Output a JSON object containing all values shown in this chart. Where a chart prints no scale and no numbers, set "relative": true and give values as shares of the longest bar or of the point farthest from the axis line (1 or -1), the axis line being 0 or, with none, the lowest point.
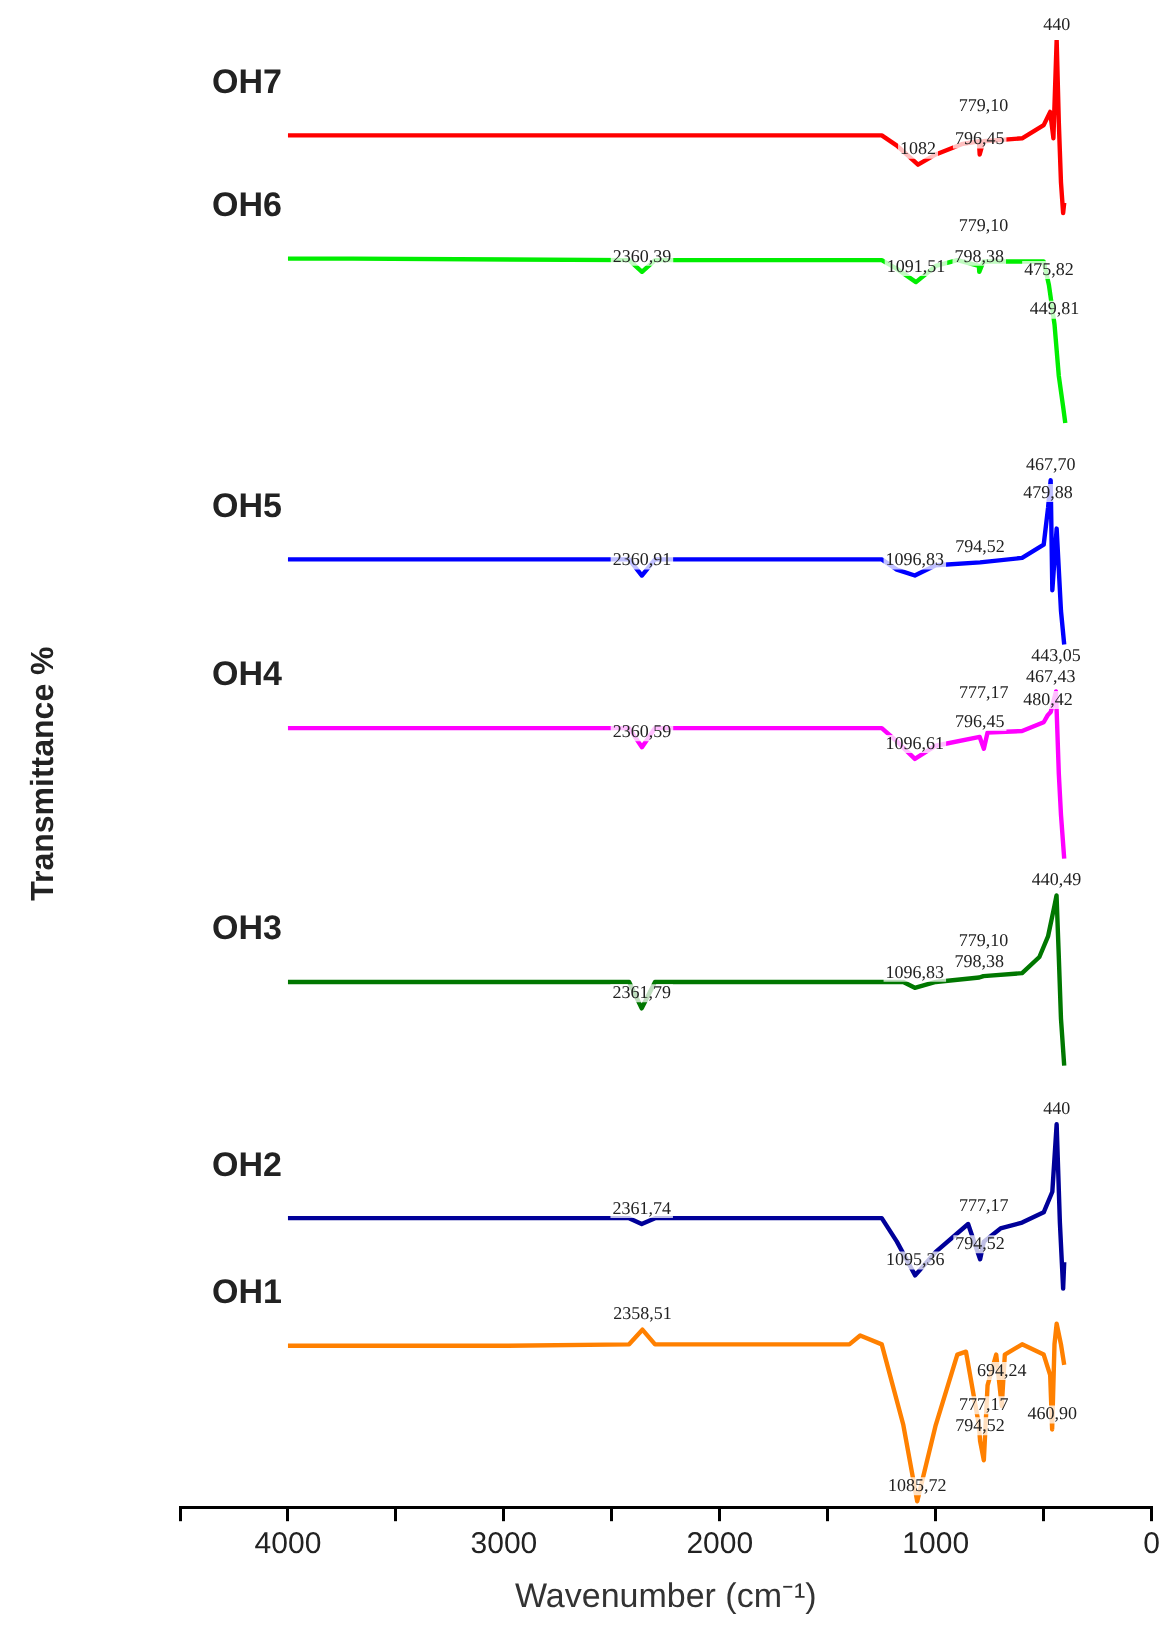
{
  "chart_data": {
    "type": "line",
    "relative": true,
    "xlabel": "Wavenumber (cm⁻¹)",
    "ylabel": "Transmittance %",
    "legend": false,
    "marker": "none",
    "line_style": "solid",
    "xlim": [
      4500,
      0
    ],
    "xticks": [
      {
        "value": 4500,
        "label": null
      },
      4000,
      {
        "value": 3500,
        "label": null
      },
      3000,
      {
        "value": 2500,
        "label": null
      },
      2000,
      {
        "value": 1500,
        "label": null
      },
      1000,
      {
        "value": 500,
        "label": null
      },
      0
    ],
    "tick_labels": "x",
    "series": [
      {
        "name": "OH1",
        "color": "#ff8000",
        "x": [
          4000,
          3000,
          2420,
          2358.51,
          2300,
          1400,
          1350,
          1250,
          1150,
          1085.72,
          1000,
          900,
          860,
          800,
          794.52,
          777.17,
          760,
          720,
          694.24,
          680,
          600,
          500,
          470,
          460.9,
          450,
          440,
          420,
          405
        ],
        "values": [
          0.11,
          0.11,
          0.111,
          0.121,
          0.111,
          0.111,
          0.117,
          0.111,
          0.056,
          0.004,
          0.056,
          0.104,
          0.106,
          0.056,
          0.045,
          0.032,
          0.083,
          0.104,
          0.069,
          0.104,
          0.111,
          0.104,
          0.09,
          0.053,
          0.111,
          0.125,
          0.111,
          0.097
        ]
      },
      {
        "name": "OH2",
        "color": "#000099",
        "x": [
          4000,
          2420,
          2361.74,
          2300,
          1250,
          1180,
          1095.36,
          1000,
          850,
          794.52,
          777.17,
          700,
          600,
          500,
          460,
          440,
          425,
          410,
          405
        ],
        "values": [
          0.197,
          0.197,
          0.193,
          0.197,
          0.197,
          0.181,
          0.158,
          0.174,
          0.193,
          0.169,
          0.181,
          0.19,
          0.194,
          0.201,
          0.215,
          0.261,
          0.194,
          0.149,
          0.167
        ]
      },
      {
        "name": "OH3",
        "color": "#007700",
        "x": [
          4000,
          2420,
          2361.79,
          2300,
          1150,
          1096.83,
          1000,
          798.38,
          779.1,
          600,
          520,
          480,
          450,
          440.49,
          430,
          420,
          405
        ],
        "values": [
          0.358,
          0.358,
          0.34,
          0.358,
          0.358,
          0.354,
          0.358,
          0.361,
          0.362,
          0.364,
          0.375,
          0.389,
          0.41,
          0.417,
          0.375,
          0.333,
          0.301
        ]
      },
      {
        "name": "OH4",
        "color": "#ff00ff",
        "x": [
          4000,
          2420,
          2360.59,
          2300,
          1250,
          1180,
          1096.61,
          1000,
          796.45,
          777.17,
          760,
          600,
          500,
          480.42,
          467.43,
          443.05,
          430,
          420,
          405
        ],
        "values": [
          0.531,
          0.531,
          0.518,
          0.531,
          0.531,
          0.522,
          0.51,
          0.519,
          0.525,
          0.517,
          0.528,
          0.529,
          0.535,
          0.54,
          0.542,
          0.556,
          0.5,
          0.472,
          0.442
        ]
      },
      {
        "name": "OH5",
        "color": "#0000ff",
        "x": [
          4000,
          3000,
          2420,
          2360.91,
          2300,
          1250,
          1180,
          1096.83,
          1000,
          794.52,
          600,
          500,
          479.88,
          467.7,
          460,
          440,
          420,
          405
        ],
        "values": [
          0.646,
          0.646,
          0.646,
          0.635,
          0.646,
          0.646,
          0.639,
          0.635,
          0.642,
          0.644,
          0.647,
          0.656,
          0.681,
          0.7,
          0.625,
          0.667,
          0.611,
          0.588
        ]
      },
      {
        "name": "OH6",
        "color": "#00ee00",
        "x": [
          4000,
          3700,
          2420,
          2360.39,
          2300,
          1250,
          1180,
          1091.51,
          1000,
          900,
          800,
          798.38,
          779.1,
          600,
          500,
          475.82,
          449.81,
          430,
          410,
          400
        ],
        "values": [
          0.851,
          0.851,
          0.85,
          0.842,
          0.85,
          0.85,
          0.844,
          0.835,
          0.846,
          0.85,
          0.846,
          0.842,
          0.849,
          0.849,
          0.849,
          0.833,
          0.806,
          0.771,
          0.75,
          0.739
        ]
      },
      {
        "name": "OH7",
        "color": "#ff0000",
        "x": [
          4000,
          1250,
          1180,
          1082,
          1000,
          880,
          800,
          796.45,
          779.1,
          600,
          500,
          470,
          455,
          440,
          430,
          420,
          410,
          405
        ],
        "values": [
          0.935,
          0.935,
          0.928,
          0.915,
          0.922,
          0.929,
          0.931,
          0.922,
          0.931,
          0.933,
          0.942,
          0.951,
          0.933,
          1.0,
          0.944,
          0.903,
          0.882,
          0.889
        ]
      }
    ],
    "annotations": [
      {
        "text": "1082",
        "x": 1082,
        "y": 0.915
      },
      {
        "text": "796,45",
        "x": 796.45,
        "y": 0.922
      },
      {
        "text": "779,10",
        "x": 779.1,
        "y": 0.931
      },
      {
        "text": "440",
        "x": 440,
        "y": 1.0
      },
      {
        "text": "2360,39",
        "x": 2360.39,
        "y": 0.842
      },
      {
        "text": "1091,51",
        "x": 1091.51,
        "y": 0.835
      },
      {
        "text": "798,38",
        "x": 798.38,
        "y": 0.842
      },
      {
        "text": "779,10",
        "x": 779.1,
        "y": 0.849
      },
      {
        "text": "475,82",
        "x": 475.82,
        "y": 0.833
      },
      {
        "text": "449,81",
        "x": 449.81,
        "y": 0.806
      },
      {
        "text": "2360,91",
        "x": 2360.91,
        "y": 0.635
      },
      {
        "text": "1096,83",
        "x": 1096.83,
        "y": 0.635
      },
      {
        "text": "794,52",
        "x": 794.52,
        "y": 0.644
      },
      {
        "text": "479,88",
        "x": 479.88,
        "y": 0.681
      },
      {
        "text": "467,70",
        "x": 467.7,
        "y": 0.7
      },
      {
        "text": "2360,59",
        "x": 2360.59,
        "y": 0.518
      },
      {
        "text": "1096,61",
        "x": 1096.61,
        "y": 0.51
      },
      {
        "text": "796,45",
        "x": 796.45,
        "y": 0.525
      },
      {
        "text": "777,17",
        "x": 777.17,
        "y": 0.517
      },
      {
        "text": "480,42",
        "x": 480.42,
        "y": 0.54
      },
      {
        "text": "467,43",
        "x": 467.43,
        "y": 0.542
      },
      {
        "text": "443,05",
        "x": 443.05,
        "y": 0.556
      },
      {
        "text": "2361,79",
        "x": 2361.79,
        "y": 0.34
      },
      {
        "text": "1096,83",
        "x": 1096.83,
        "y": 0.354
      },
      {
        "text": "798,38",
        "x": 798.38,
        "y": 0.361
      },
      {
        "text": "779,10",
        "x": 779.1,
        "y": 0.362
      },
      {
        "text": "440,49",
        "x": 440.49,
        "y": 0.417
      },
      {
        "text": "2361,74",
        "x": 2361.74,
        "y": 0.193
      },
      {
        "text": "1095,36",
        "x": 1095.36,
        "y": 0.158
      },
      {
        "text": "794,52",
        "x": 794.52,
        "y": 0.169
      },
      {
        "text": "777,17",
        "x": 777.17,
        "y": 0.181
      },
      {
        "text": "440",
        "x": 440,
        "y": 0.261
      },
      {
        "text": "2358,51",
        "x": 2358.51,
        "y": 0.121
      },
      {
        "text": "1085,72",
        "x": 1085.72,
        "y": 0.004
      },
      {
        "text": "794,52",
        "x": 794.52,
        "y": 0.045
      },
      {
        "text": "777,17",
        "x": 777.17,
        "y": 0.032
      },
      {
        "text": "694,24",
        "x": 694.24,
        "y": 0.069
      },
      {
        "text": "460,90",
        "x": 460.9,
        "y": 0.053
      }
    ]
  }
}
